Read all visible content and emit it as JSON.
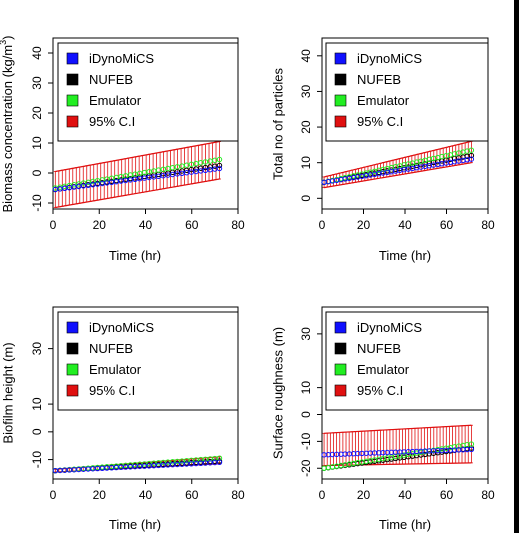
{
  "colors": {
    "idynomics": "#1010ff",
    "nufeb": "#000000",
    "emulator": "#22ee22",
    "ci": "#e01010",
    "frame": "#000000"
  },
  "legend_entries": [
    "iDynoMiCS",
    "NUFEB",
    "Emulator",
    "95% C.I"
  ],
  "chart_data": [
    {
      "type": "line",
      "xlabel": "Time (hr)",
      "ylabel": "Biomass concentration (kg/m^3)",
      "xlim": [
        0,
        80
      ],
      "ylim": [
        -12,
        45
      ],
      "xticks": [
        0,
        20,
        40,
        60,
        80
      ],
      "yticks": [
        -10,
        0,
        10,
        20,
        30,
        40
      ],
      "legend": "top",
      "x": [
        1,
        72
      ],
      "series": [
        {
          "name": "iDynoMiCS",
          "values": [
            -5.5,
            1.5
          ]
        },
        {
          "name": "NUFEB",
          "values": [
            -5.5,
            2.5
          ]
        },
        {
          "name": "Emulator",
          "values": [
            -5,
            4.5
          ]
        },
        {
          "name": "95% C.I",
          "lower": [
            -11.5,
            -2
          ],
          "upper": [
            0.5,
            10.5
          ]
        }
      ]
    },
    {
      "type": "line",
      "xlabel": "Time (hr)",
      "ylabel": "Total no of particles",
      "xlim": [
        0,
        80
      ],
      "ylim": [
        -3,
        45
      ],
      "xticks": [
        0,
        20,
        40,
        60,
        80
      ],
      "yticks": [
        0,
        10,
        20,
        30,
        40
      ],
      "legend": "top",
      "x": [
        1,
        72
      ],
      "series": [
        {
          "name": "iDynoMiCS",
          "values": [
            4.5,
            11
          ]
        },
        {
          "name": "NUFEB",
          "values": [
            4.5,
            12
          ]
        },
        {
          "name": "Emulator",
          "values": [
            4.5,
            13.5
          ]
        },
        {
          "name": "95% C.I",
          "lower": [
            3,
            10
          ],
          "upper": [
            6,
            16
          ]
        }
      ]
    },
    {
      "type": "line",
      "xlabel": "Time (hr)",
      "ylabel": "Biofilm height (m)",
      "xlim": [
        0,
        80
      ],
      "ylim": [
        -17,
        45
      ],
      "xticks": [
        0,
        20,
        40,
        60,
        80
      ],
      "yticks": [
        -10,
        0,
        10,
        30
      ],
      "legend": "top",
      "x": [
        1,
        72
      ],
      "series": [
        {
          "name": "iDynoMiCS",
          "values": [
            -14,
            -11
          ]
        },
        {
          "name": "NUFEB",
          "values": [
            -14,
            -10.5
          ]
        },
        {
          "name": "Emulator",
          "values": [
            -14,
            -9.5
          ]
        },
        {
          "name": "95% C.I",
          "lower": [
            -14.5,
            -11.5
          ],
          "upper": [
            -13.5,
            -9
          ]
        }
      ]
    },
    {
      "type": "line",
      "xlabel": "Time (hr)",
      "ylabel": "Surface roughness (m)",
      "xlim": [
        0,
        80
      ],
      "ylim": [
        -24,
        40
      ],
      "xticks": [
        0,
        20,
        40,
        60,
        80
      ],
      "yticks": [
        -20,
        -10,
        0,
        10,
        30
      ],
      "legend": "top",
      "x": [
        1,
        72
      ],
      "series": [
        {
          "name": "iDynoMiCS",
          "values": [
            -15,
            -13
          ]
        },
        {
          "name": "NUFEB",
          "values": [
            -20,
            -12.5
          ]
        },
        {
          "name": "Emulator",
          "values": [
            -20,
            -11
          ]
        },
        {
          "name": "95% C.I",
          "lower": [
            -19,
            -18
          ],
          "upper": [
            -7,
            -4
          ]
        }
      ]
    }
  ]
}
